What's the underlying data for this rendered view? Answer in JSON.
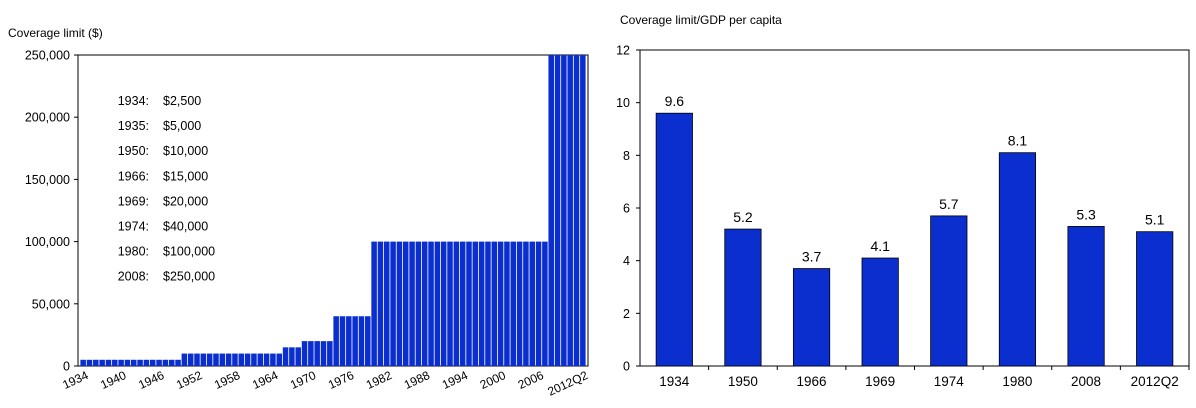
{
  "chart_data": [
    {
      "type": "bar",
      "ylabel": "Coverage limit ($)",
      "ylim": [
        0,
        250000
      ],
      "yticks": [
        0,
        50000,
        100000,
        150000,
        200000,
        250000
      ],
      "ytick_labels": [
        "0",
        "50,000",
        "100,000",
        "150,000",
        "200,000",
        "250,000"
      ],
      "xtick_labels": [
        "1934",
        "1940",
        "1946",
        "1952",
        "1958",
        "1964",
        "1970",
        "1976",
        "1982",
        "1988",
        "1994",
        "2000",
        "2006",
        "2012Q2"
      ],
      "bar_color": "#0b2fcf",
      "steps": [
        {
          "from": 1934,
          "to": 1934,
          "value": 2500
        },
        {
          "from": 1935,
          "to": 1949,
          "value": 5000
        },
        {
          "from": 1950,
          "to": 1965,
          "value": 10000
        },
        {
          "from": 1966,
          "to": 1968,
          "value": 15000
        },
        {
          "from": 1969,
          "to": 1973,
          "value": 20000
        },
        {
          "from": 1974,
          "to": 1979,
          "value": 40000
        },
        {
          "from": 1980,
          "to": 2007,
          "value": 100000
        },
        {
          "from": 2008,
          "to": 2012,
          "value": 250000
        }
      ],
      "annotations": [
        {
          "year": "1934:",
          "amount": "$2,500"
        },
        {
          "year": "1935:",
          "amount": "$5,000"
        },
        {
          "year": "1950:",
          "amount": "$10,000"
        },
        {
          "year": "1966:",
          "amount": "$15,000"
        },
        {
          "year": "1969:",
          "amount": "$20,000"
        },
        {
          "year": "1974:",
          "amount": "$40,000"
        },
        {
          "year": "1980:",
          "amount": "$100,000"
        },
        {
          "year": "2008:",
          "amount": "$250,000"
        }
      ]
    },
    {
      "type": "bar",
      "ylabel": "Coverage limit/GDP per capita",
      "ylim": [
        0,
        12
      ],
      "yticks": [
        0,
        2,
        4,
        6,
        8,
        10,
        12
      ],
      "categories": [
        "1934",
        "1950",
        "1966",
        "1969",
        "1974",
        "1980",
        "2008",
        "2012Q2"
      ],
      "values": [
        9.6,
        5.2,
        3.7,
        4.1,
        5.7,
        8.1,
        5.3,
        5.1
      ],
      "data_labels": [
        "9.6",
        "5.2",
        "3.7",
        "4.1",
        "5.7",
        "8.1",
        "5.3",
        "5.1"
      ],
      "bar_color": "#0b2fcf",
      "grid": false
    }
  ]
}
